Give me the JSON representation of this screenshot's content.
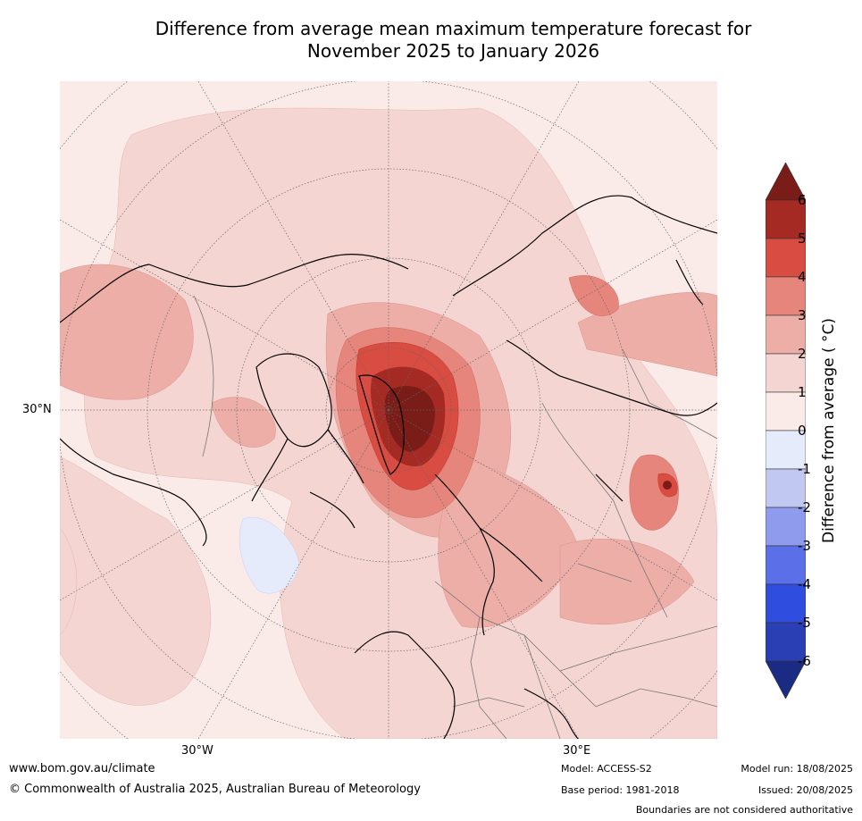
{
  "title_line1": "Difference from average mean maximum temperature forecast for",
  "title_line2": "November 2025 to January 2026",
  "map": {
    "latitude_labels": [
      "30°N"
    ],
    "longitude_labels": [
      "30°W",
      "30°E"
    ]
  },
  "colorbar": {
    "label": "Difference from average ( °C)",
    "ticks": [
      "6",
      "5",
      "4",
      "3",
      "2",
      "1",
      "0",
      "-1",
      "-2",
      "-3",
      "-4",
      "-5",
      "-6"
    ],
    "colors": [
      "#7a1d18",
      "#a52a23",
      "#d84c41",
      "#e6857b",
      "#edaea8",
      "#f5d5d1",
      "#fbebe8",
      "#e6ebfb",
      "#c1c9f2",
      "#8f9cee",
      "#5b70e8",
      "#2f4ee0",
      "#2a3fb4",
      "#1b2a83"
    ]
  },
  "footer": {
    "url": "www.bom.gov.au/climate",
    "copyright": "© Commonwealth of Australia 2025, Australian Bureau of Meteorology",
    "model": "Model: ACCESS-S2",
    "base_period": "Base period: 1981-2018",
    "model_run": "Model run: 18/08/2025",
    "issued": "Issued: 20/08/2025",
    "boundaries": "Boundaries are not considered authoritative"
  }
}
